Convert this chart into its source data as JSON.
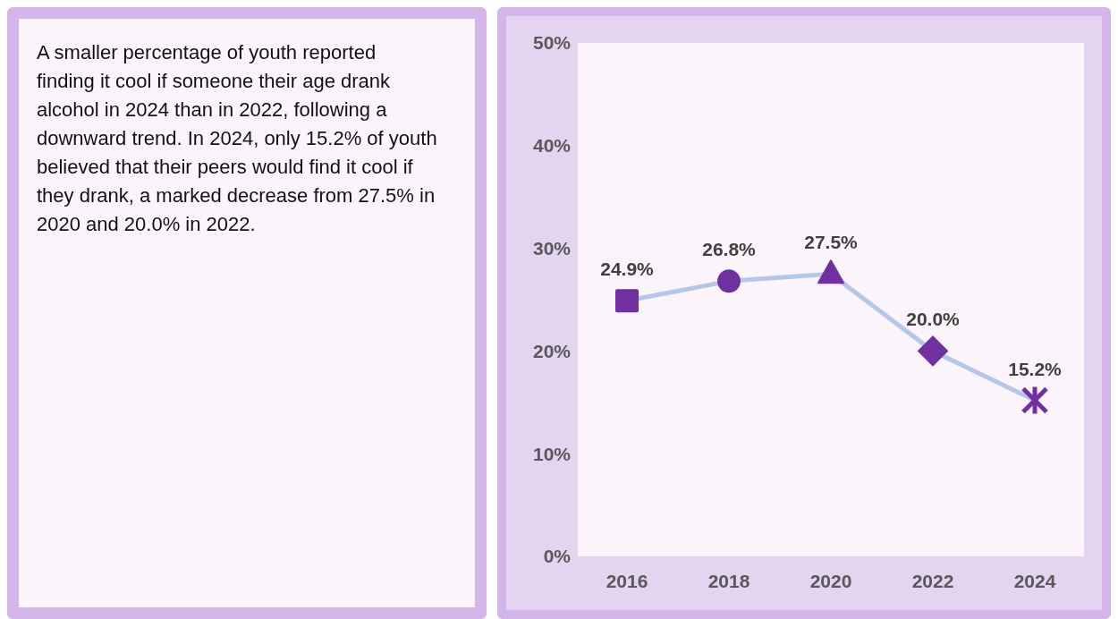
{
  "chart_data": {
    "type": "line",
    "categories": [
      "2016",
      "2018",
      "2020",
      "2022",
      "2024"
    ],
    "series": [
      {
        "type": "line",
        "color": "#b4c7e7",
        "marker": "none",
        "values": [
          24.9,
          26.8,
          27.5,
          20.0,
          15.2
        ],
        "value_labels": [
          "24.9%",
          "26.8%",
          "27.5%",
          "20.0%",
          "15.2%"
        ]
      },
      {
        "type": "scatter",
        "color": "#7030a0",
        "marker": "square",
        "values": [
          24.9,
          null,
          null,
          null,
          null
        ]
      },
      {
        "type": "scatter",
        "color": "#7030a0",
        "marker": "circle",
        "values": [
          null,
          26.8,
          null,
          null,
          null
        ]
      },
      {
        "type": "scatter",
        "color": "#7030a0",
        "marker": "triangle",
        "values": [
          null,
          null,
          27.5,
          null,
          null
        ]
      },
      {
        "type": "scatter",
        "color": "#7030a0",
        "marker": "diamond",
        "values": [
          null,
          null,
          null,
          20.0,
          null
        ]
      },
      {
        "type": "scatter",
        "color": "#7030a0",
        "marker": "cross",
        "values": [
          null,
          null,
          null,
          null,
          15.2
        ]
      }
    ],
    "ylim": [
      0,
      50
    ],
    "yticks": [
      {
        "value": 0,
        "label": "0%"
      },
      {
        "value": 10,
        "label": "10%"
      },
      {
        "value": 20,
        "label": "20%"
      },
      {
        "value": 30,
        "label": "30%"
      },
      {
        "value": 40,
        "label": "40%"
      },
      {
        "value": 50,
        "label": "50%"
      }
    ],
    "annotations": [
      "A smaller percentage of youth reported finding it cool if someone their age drank alcohol in 2024 than in 2022, following a downward trend.  In 2024, only 15.2% of youth believed that their peers would find it cool if they drank, a marked decrease from 27.5% in 2020 and 20.0% in 2022."
    ]
  }
}
